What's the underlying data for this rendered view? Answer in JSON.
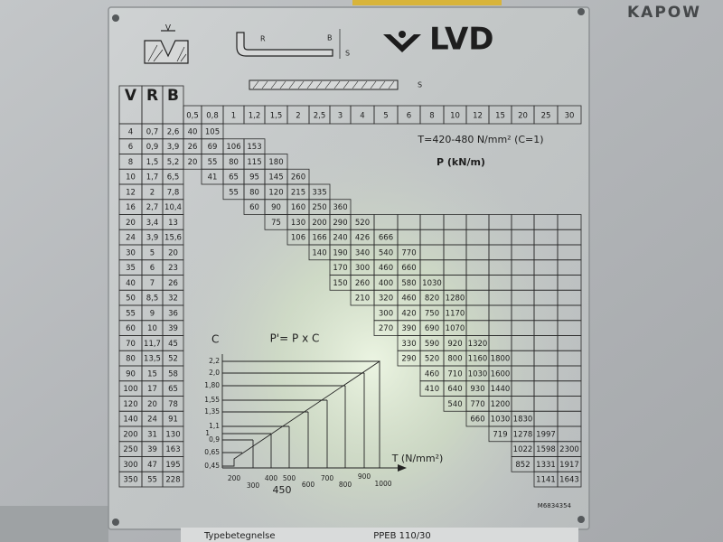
{
  "brand": "KAPOW",
  "plate": {
    "logo": "LVD",
    "diagram_labels": {
      "die_v": "V",
      "punch_r": "R",
      "bend_b": "B",
      "bend_s": "S",
      "sheet_s": "S"
    },
    "table": {
      "header": [
        "V",
        "R",
        "B"
      ],
      "thickness": [
        "0,5",
        "0,8",
        "1",
        "1,2",
        "1,5",
        "2",
        "2,5",
        "3",
        "4",
        "5",
        "6",
        "8",
        "10",
        "12",
        "15",
        "20",
        "25",
        "30"
      ],
      "rows": [
        [
          "4",
          "0,7",
          "2,6",
          "40",
          "105",
          null,
          null,
          null,
          null,
          null,
          null,
          null,
          null,
          null,
          null,
          null,
          null,
          null,
          null,
          null,
          null
        ],
        [
          "6",
          "0,9",
          "3,9",
          "26",
          "69",
          "106",
          "153",
          null,
          null,
          null,
          null,
          null,
          null,
          null,
          null,
          null,
          null,
          null,
          null,
          null,
          null
        ],
        [
          "8",
          "1,5",
          "5,2",
          "20",
          "55",
          "80",
          "115",
          "180",
          null,
          null,
          null,
          null,
          null,
          null,
          null,
          null,
          null,
          null,
          null,
          null,
          null
        ],
        [
          "10",
          "1,7",
          "6,5",
          null,
          "41",
          "65",
          "95",
          "145",
          "260",
          null,
          null,
          null,
          null,
          null,
          null,
          null,
          null,
          null,
          null,
          null,
          null
        ],
        [
          "12",
          "2",
          "7,8",
          null,
          null,
          "55",
          "80",
          "120",
          "215",
          "335",
          null,
          null,
          null,
          null,
          null,
          null,
          null,
          null,
          null,
          null,
          null
        ],
        [
          "16",
          "2,7",
          "10,4",
          null,
          null,
          null,
          "60",
          "90",
          "160",
          "250",
          "360",
          null,
          null,
          null,
          null,
          null,
          null,
          null,
          null,
          null,
          null
        ],
        [
          "20",
          "3,4",
          "13",
          null,
          null,
          null,
          null,
          "75",
          "130",
          "200",
          "290",
          "520",
          null,
          null,
          null,
          null,
          null,
          null,
          null,
          null,
          null
        ],
        [
          "24",
          "3,9",
          "15,6",
          null,
          null,
          null,
          null,
          null,
          "106",
          "166",
          "240",
          "426",
          "666",
          null,
          null,
          null,
          null,
          null,
          null,
          null,
          null
        ],
        [
          "30",
          "5",
          "20",
          null,
          null,
          null,
          null,
          null,
          null,
          "140",
          "190",
          "340",
          "540",
          "770",
          null,
          null,
          null,
          null,
          null,
          null,
          null
        ],
        [
          "35",
          "6",
          "23",
          null,
          null,
          null,
          null,
          null,
          null,
          null,
          "170",
          "300",
          "460",
          "660",
          null,
          null,
          null,
          null,
          null,
          null,
          null
        ],
        [
          "40",
          "7",
          "26",
          null,
          null,
          null,
          null,
          null,
          null,
          null,
          "150",
          "260",
          "400",
          "580",
          "1030",
          null,
          null,
          null,
          null,
          null,
          null
        ],
        [
          "50",
          "8,5",
          "32",
          null,
          null,
          null,
          null,
          null,
          null,
          null,
          null,
          "210",
          "320",
          "460",
          "820",
          "1280",
          null,
          null,
          null,
          null,
          null
        ],
        [
          "55",
          "9",
          "36",
          null,
          null,
          null,
          null,
          null,
          null,
          null,
          null,
          null,
          "300",
          "420",
          "750",
          "1170",
          null,
          null,
          null,
          null,
          null
        ],
        [
          "60",
          "10",
          "39",
          null,
          null,
          null,
          null,
          null,
          null,
          null,
          null,
          null,
          "270",
          "390",
          "690",
          "1070",
          null,
          null,
          null,
          null,
          null
        ],
        [
          "70",
          "11,7",
          "45",
          null,
          null,
          null,
          null,
          null,
          null,
          null,
          null,
          null,
          null,
          "330",
          "590",
          "920",
          "1320",
          null,
          null,
          null,
          null
        ],
        [
          "80",
          "13,5",
          "52",
          null,
          null,
          null,
          null,
          null,
          null,
          null,
          null,
          null,
          null,
          "290",
          "520",
          "800",
          "1160",
          "1800",
          null,
          null,
          null
        ],
        [
          "90",
          "15",
          "58",
          null,
          null,
          null,
          null,
          null,
          null,
          null,
          null,
          null,
          null,
          null,
          "460",
          "710",
          "1030",
          "1600",
          null,
          null,
          null
        ],
        [
          "100",
          "17",
          "65",
          null,
          null,
          null,
          null,
          null,
          null,
          null,
          null,
          null,
          null,
          null,
          "410",
          "640",
          "930",
          "1440",
          null,
          null,
          null
        ],
        [
          "120",
          "20",
          "78",
          null,
          null,
          null,
          null,
          null,
          null,
          null,
          null,
          null,
          null,
          null,
          null,
          "540",
          "770",
          "1200",
          null,
          null,
          null
        ],
        [
          "140",
          "24",
          "91",
          null,
          null,
          null,
          null,
          null,
          null,
          null,
          null,
          null,
          null,
          null,
          null,
          null,
          "660",
          "1030",
          "1830",
          null,
          null
        ],
        [
          "200",
          "31",
          "130",
          null,
          null,
          null,
          null,
          null,
          null,
          null,
          null,
          null,
          null,
          null,
          null,
          null,
          null,
          "719",
          "1278",
          "1997",
          null
        ],
        [
          "250",
          "39",
          "163",
          null,
          null,
          null,
          null,
          null,
          null,
          null,
          null,
          null,
          null,
          null,
          null,
          null,
          null,
          null,
          "1022",
          "1598",
          "2300"
        ],
        [
          "300",
          "47",
          "195",
          null,
          null,
          null,
          null,
          null,
          null,
          null,
          null,
          null,
          null,
          null,
          null,
          null,
          null,
          null,
          "852",
          "1331",
          "1917"
        ],
        [
          "350",
          "55",
          "228",
          null,
          null,
          null,
          null,
          null,
          null,
          null,
          null,
          null,
          null,
          null,
          null,
          null,
          null,
          null,
          null,
          "1141",
          "1643"
        ]
      ]
    },
    "material_note": "T=420-480 N/mm² (C=1)",
    "unit_note": "P (kN/m)",
    "inset": {
      "axis_c": "C",
      "formula": "P'= P x C",
      "c_ticks": [
        "2,2",
        "2,0",
        "1,80",
        "1,55",
        "1,35",
        "1,1",
        "1",
        "0,9",
        "0,65",
        "0,45"
      ],
      "t_ticks": [
        "200",
        "300",
        "400",
        "450",
        "500",
        "600",
        "700",
        "800",
        "900",
        "1000"
      ],
      "axis_t": "T (N/mm²)"
    },
    "serial": "M6834354",
    "type_label": "Typebetegnelse",
    "type_value": "PPEB 110/30"
  }
}
